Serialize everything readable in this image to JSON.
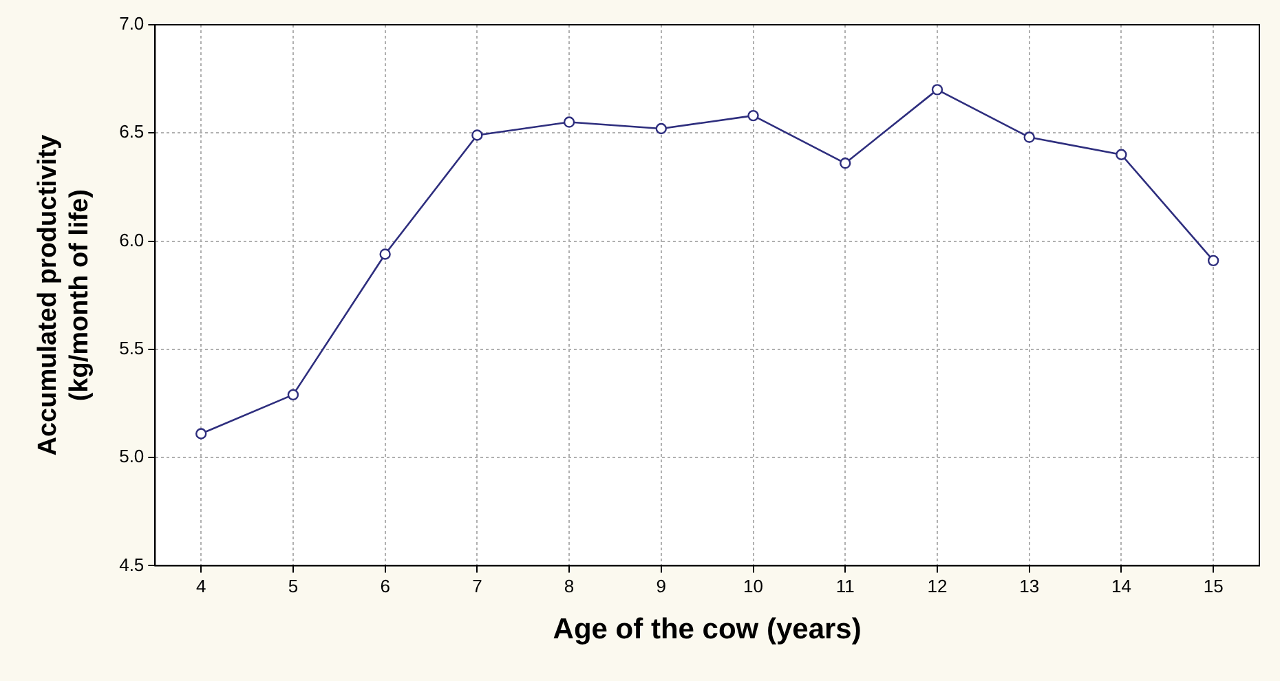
{
  "chart_data": {
    "type": "line",
    "categories": [
      "4",
      "5",
      "6",
      "7",
      "8",
      "9",
      "10",
      "11",
      "12",
      "13",
      "14",
      "15"
    ],
    "series": [
      {
        "color": "#2e2e7e",
        "values": [
          5.11,
          5.29,
          5.94,
          6.49,
          6.55,
          6.52,
          6.58,
          6.36,
          6.7,
          6.48,
          6.4,
          5.91
        ]
      }
    ],
    "xlabel": "Age of the cow (years)",
    "ylabel": "Accumulated productivity\n(kg/month of life)",
    "ylim": [
      4.5,
      7.0
    ],
    "yticks": [
      4.5,
      {
        "value": 5,
        "label": "5.0"
      },
      5.5,
      {
        "value": 6,
        "label": "6.0"
      },
      6.5,
      {
        "value": 7,
        "label": "7.0"
      }
    ],
    "grid": true,
    "marker": "circle",
    "line_style": "solid",
    "legend": false
  }
}
